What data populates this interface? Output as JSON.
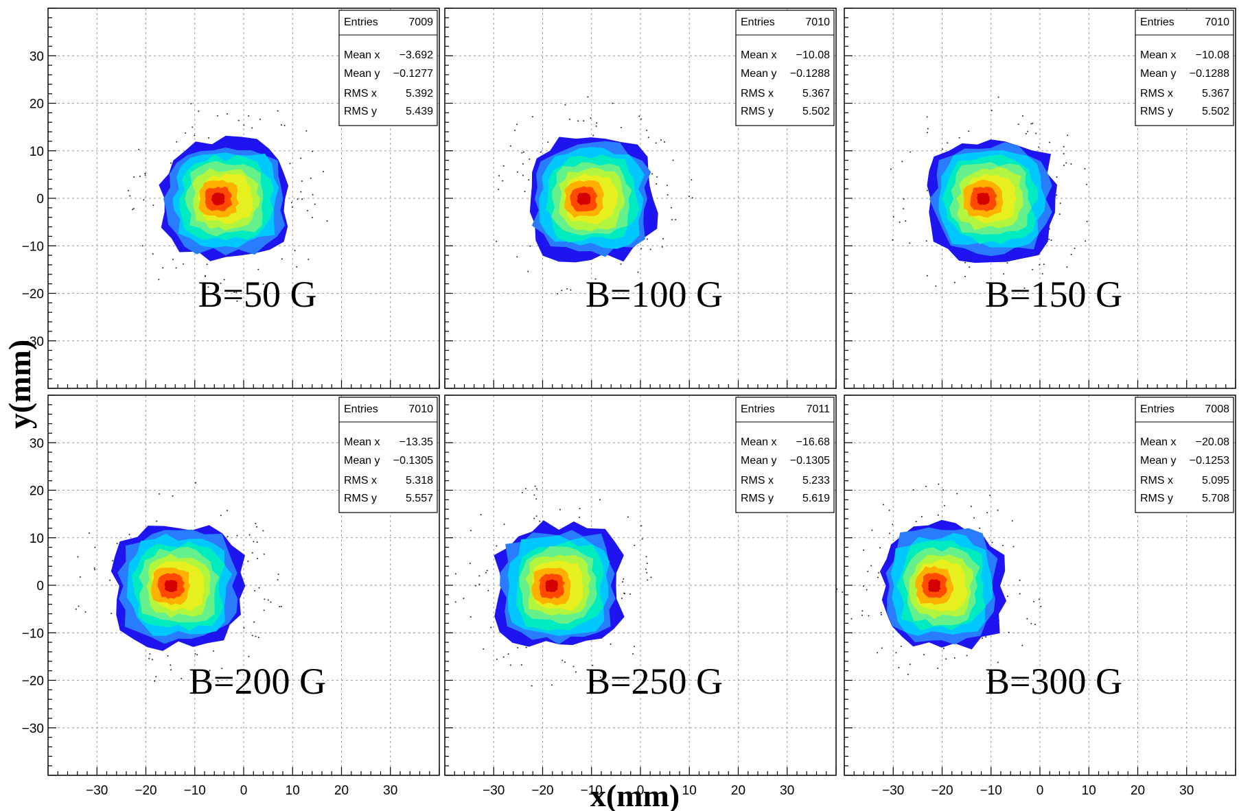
{
  "figure": {
    "xlabel": "x(mm)",
    "ylabel": "y(mm)"
  },
  "colors": {
    "contour_levels": [
      "#1e14f0",
      "#2a7cff",
      "#00c8ff",
      "#00ecc0",
      "#66f08c",
      "#b2f53e",
      "#e6f01e",
      "#ffb000",
      "#ff4a00",
      "#d40000"
    ]
  },
  "chart_data": [
    {
      "type": "heatmap",
      "label": "B=50 G",
      "xlim": [
        -40,
        40
      ],
      "ylim": [
        -40,
        40
      ],
      "xticks": [
        -30,
        -20,
        -10,
        0,
        10,
        20,
        30
      ],
      "yticks": [
        -30,
        -20,
        -10,
        0,
        10,
        20,
        30
      ],
      "stats": {
        "entries": 7009,
        "mean_x": -3.692,
        "mean_y": -0.1277,
        "rms_x": 5.392,
        "rms_y": 5.439
      },
      "stats_text": {
        "entries": "7009",
        "mean_x": "−3.692",
        "mean_y": "−0.1277",
        "rms_x": "5.392",
        "rms_y": "5.439"
      }
    },
    {
      "type": "heatmap",
      "label": "B=100 G",
      "xlim": [
        -40,
        40
      ],
      "ylim": [
        -40,
        40
      ],
      "xticks": [
        -30,
        -20,
        -10,
        0,
        10,
        20,
        30
      ],
      "yticks": [
        -30,
        -20,
        -10,
        0,
        10,
        20,
        30
      ],
      "stats": {
        "entries": 7010,
        "mean_x": -10.08,
        "mean_y": -0.1288,
        "rms_x": 5.367,
        "rms_y": 5.502
      },
      "stats_text": {
        "entries": "7010",
        "mean_x": "−10.08",
        "mean_y": "−0.1288",
        "rms_x": "5.367",
        "rms_y": "5.502"
      }
    },
    {
      "type": "heatmap",
      "label": "B=150 G",
      "xlim": [
        -40,
        40
      ],
      "ylim": [
        -40,
        40
      ],
      "xticks": [
        -30,
        -20,
        -10,
        0,
        10,
        20,
        30
      ],
      "yticks": [
        -30,
        -20,
        -10,
        0,
        10,
        20,
        30
      ],
      "stats": {
        "entries": 7010,
        "mean_x": -10.08,
        "mean_y": -0.1288,
        "rms_x": 5.367,
        "rms_y": 5.502
      },
      "stats_text": {
        "entries": "7010",
        "mean_x": "−10.08",
        "mean_y": "−0.1288",
        "rms_x": "5.367",
        "rms_y": "5.502"
      }
    },
    {
      "type": "heatmap",
      "label": "B=200 G",
      "xlim": [
        -40,
        40
      ],
      "ylim": [
        -40,
        40
      ],
      "xticks": [
        -30,
        -20,
        -10,
        0,
        10,
        20,
        30
      ],
      "yticks": [
        -30,
        -20,
        -10,
        0,
        10,
        20,
        30
      ],
      "stats": {
        "entries": 7010,
        "mean_x": -13.35,
        "mean_y": -0.1305,
        "rms_x": 5.318,
        "rms_y": 5.557
      },
      "stats_text": {
        "entries": "7010",
        "mean_x": "−13.35",
        "mean_y": "−0.1305",
        "rms_x": "5.318",
        "rms_y": "5.557"
      }
    },
    {
      "type": "heatmap",
      "label": "B=250 G",
      "xlim": [
        -40,
        40
      ],
      "ylim": [
        -40,
        40
      ],
      "xticks": [
        -30,
        -20,
        -10,
        0,
        10,
        20,
        30
      ],
      "yticks": [
        -30,
        -20,
        -10,
        0,
        10,
        20,
        30
      ],
      "stats": {
        "entries": 7011,
        "mean_x": -16.68,
        "mean_y": -0.1305,
        "rms_x": 5.233,
        "rms_y": 5.619
      },
      "stats_text": {
        "entries": "7011",
        "mean_x": "−16.68",
        "mean_y": "−0.1305",
        "rms_x": "5.233",
        "rms_y": "5.619"
      }
    },
    {
      "type": "heatmap",
      "label": "B=300 G",
      "xlim": [
        -40,
        40
      ],
      "ylim": [
        -40,
        40
      ],
      "xticks": [
        -30,
        -20,
        -10,
        0,
        10,
        20,
        30
      ],
      "yticks": [
        -30,
        -20,
        -10,
        0,
        10,
        20,
        30
      ],
      "stats": {
        "entries": 7008,
        "mean_x": -20.08,
        "mean_y": -0.1253,
        "rms_x": 5.095,
        "rms_y": 5.708
      },
      "stats_text": {
        "entries": "7008",
        "mean_x": "−20.08",
        "mean_y": "−0.1253",
        "rms_x": "5.095",
        "rms_y": "5.708"
      }
    }
  ],
  "stats_labels": {
    "entries": "Entries",
    "mean_x": "Mean x",
    "mean_y": "Mean y",
    "rms_x": "RMS x",
    "rms_y": "RMS y"
  }
}
